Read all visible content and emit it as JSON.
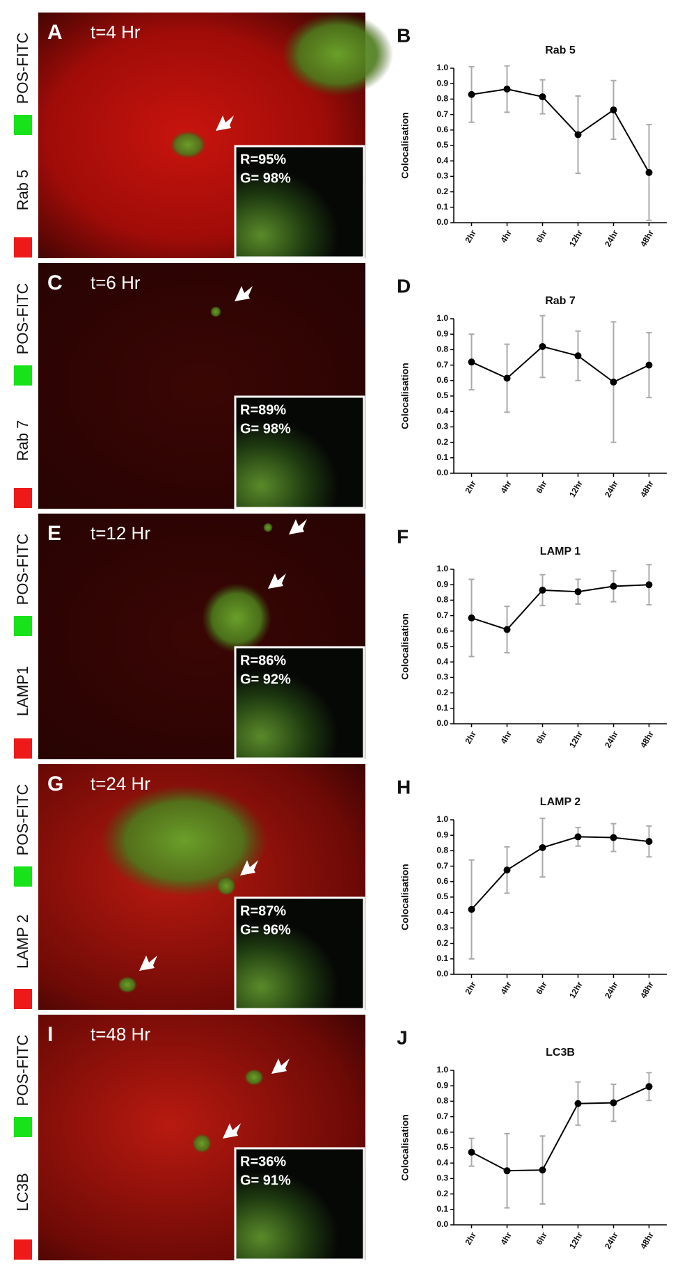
{
  "panels": [
    {
      "letter": "A",
      "time": "t=4 Hr",
      "label_green": "POS-FITC",
      "label_red": "Rab 5",
      "inset": [
        "R=95%",
        "G= 98%"
      ]
    },
    {
      "letter": "C",
      "time": "t=6 Hr",
      "label_green": "POS-FITC",
      "label_red": "Rab 7",
      "inset": [
        "R=89%",
        "G= 98%"
      ]
    },
    {
      "letter": "E",
      "time": "t=12 Hr",
      "label_green": "POS-FITC",
      "label_red": "LAMP1",
      "inset": [
        "R=86%",
        "G= 92%"
      ]
    },
    {
      "letter": "G",
      "time": "t=24 Hr",
      "label_green": "POS-FITC",
      "label_red": "LAMP 2",
      "inset": [
        "R=87%",
        "G= 96%"
      ]
    },
    {
      "letter": "I",
      "time": "t=48 Hr",
      "label_green": "POS-FITC",
      "label_red": "LC3B",
      "inset": [
        "R=36%",
        "G= 91%"
      ]
    }
  ],
  "chart_data": [
    {
      "type": "line",
      "panel_label": "B",
      "title": "Rab 5",
      "y_label": "Colocalisation",
      "categories": [
        "2hr",
        "4hr",
        "6hr",
        "12hr",
        "24hr",
        "48hr"
      ],
      "values": [
        0.83,
        0.865,
        0.815,
        0.57,
        0.73,
        0.325
      ],
      "errors": [
        0.18,
        0.15,
        0.11,
        0.25,
        0.19,
        0.31
      ],
      "color": "#000000",
      "error_color": "#aaaaaa",
      "ylim": [
        0,
        1
      ],
      "yticks": [
        {
          "value": 0,
          "label": "0.0"
        },
        0.1,
        0.2,
        0.3,
        0.4,
        0.5,
        0.6,
        0.7,
        0.8,
        0.9,
        {
          "value": 1,
          "label": "1.0"
        }
      ]
    },
    {
      "type": "line",
      "panel_label": "D",
      "title": "Rab 7",
      "y_label": "Colocalisation",
      "categories": [
        "2hr",
        "4hr",
        "6hr",
        "12hr",
        "24hr",
        "48hr"
      ],
      "values": [
        0.72,
        0.615,
        0.82,
        0.76,
        0.59,
        0.7
      ],
      "errors": [
        0.18,
        0.22,
        0.2,
        0.16,
        0.39,
        0.21
      ],
      "color": "#000000",
      "error_color": "#aaaaaa",
      "ylim": [
        0,
        1
      ],
      "yticks": [
        {
          "value": 0,
          "label": "0.0"
        },
        0.1,
        0.2,
        0.3,
        0.4,
        0.5,
        0.6,
        0.7,
        0.8,
        0.9,
        {
          "value": 1,
          "label": "1.0"
        }
      ]
    },
    {
      "type": "line",
      "panel_label": "F",
      "title": "LAMP 1",
      "y_label": "Colocalisation",
      "categories": [
        "2hr",
        "4hr",
        "6hr",
        "12hr",
        "24hr",
        "48hr"
      ],
      "values": [
        0.685,
        0.61,
        0.865,
        0.855,
        0.89,
        0.9
      ],
      "errors": [
        0.25,
        0.15,
        0.1,
        0.08,
        0.1,
        0.13
      ],
      "color": "#000000",
      "error_color": "#aaaaaa",
      "ylim": [
        0,
        1
      ],
      "yticks": [
        {
          "value": 0,
          "label": "0.0"
        },
        0.1,
        0.2,
        0.3,
        0.4,
        0.5,
        0.6,
        0.7,
        0.8,
        0.9,
        {
          "value": 1,
          "label": "1.0"
        }
      ]
    },
    {
      "type": "line",
      "panel_label": "H",
      "title": "LAMP 2",
      "y_label": "Colocalisation",
      "categories": [
        "2hr",
        "4hr",
        "6hr",
        "12hr",
        "24hr",
        "48hr"
      ],
      "values": [
        0.42,
        0.675,
        0.82,
        0.89,
        0.885,
        0.86
      ],
      "errors": [
        0.32,
        0.15,
        0.19,
        0.06,
        0.09,
        0.1
      ],
      "color": "#000000",
      "error_color": "#aaaaaa",
      "ylim": [
        0,
        1
      ],
      "yticks": [
        {
          "value": 0,
          "label": "0.0"
        },
        0.1,
        0.2,
        0.3,
        0.4,
        0.5,
        0.6,
        0.7,
        0.8,
        0.9,
        {
          "value": 1,
          "label": "1.0"
        }
      ]
    },
    {
      "type": "line",
      "panel_label": "J",
      "title": "LC3B",
      "y_label": "Colocalisation",
      "categories": [
        "2hr",
        "4hr",
        "6hr",
        "12hr",
        "24hr",
        "48hr"
      ],
      "values": [
        0.47,
        0.35,
        0.355,
        0.785,
        0.79,
        0.895
      ],
      "errors": [
        0.09,
        0.24,
        0.22,
        0.14,
        0.12,
        0.09
      ],
      "color": "#000000",
      "error_color": "#aaaaaa",
      "ylim": [
        0,
        1
      ],
      "yticks": [
        {
          "value": 0,
          "label": "0.0"
        },
        0.1,
        0.2,
        0.3,
        0.4,
        0.5,
        0.6,
        0.7,
        0.8,
        0.9,
        {
          "value": 1,
          "label": "1.0"
        }
      ]
    }
  ]
}
